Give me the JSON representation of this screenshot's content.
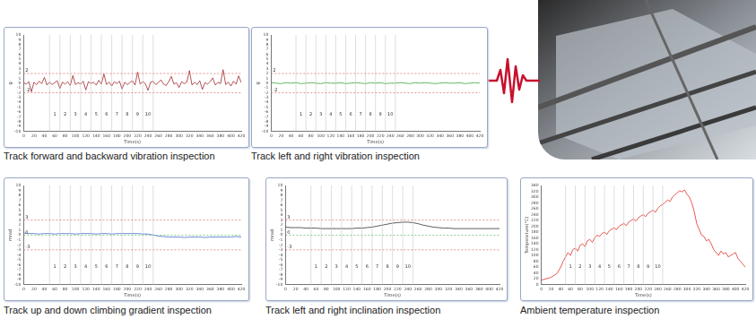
{
  "chart_data": [
    {
      "type": "line",
      "title": "Track forward and backward vibration inspection",
      "x_label": "Time(s)",
      "y_label": "g",
      "color": "#a0282a",
      "grid": false,
      "x": [
        0,
        5,
        10,
        15,
        20,
        25,
        30,
        35,
        40,
        45,
        50,
        55,
        60,
        65,
        70,
        75,
        80,
        85,
        90,
        95,
        100,
        105,
        110,
        115,
        120,
        125,
        130,
        135,
        140,
        145,
        150,
        155,
        160,
        165,
        170,
        175,
        180,
        185,
        190,
        195,
        200,
        205,
        210,
        215,
        220,
        225,
        230,
        235,
        240,
        245,
        250,
        255,
        260,
        265,
        270,
        275,
        280,
        285,
        290,
        295,
        300,
        305,
        310,
        315,
        320,
        325,
        330,
        335,
        340,
        345,
        350,
        355,
        360,
        365,
        370,
        375,
        380,
        385,
        390,
        395,
        400,
        405,
        410,
        415,
        420
      ],
      "values": [
        0.1,
        -0.2,
        0.3,
        -1.8,
        0.2,
        -0.3,
        0.4,
        -0.1,
        1.2,
        -0.4,
        0.2,
        -0.3,
        0.1,
        0.5,
        -1.1,
        0.2,
        -0.2,
        0.3,
        -0.5,
        1.6,
        -0.3,
        0.1,
        -0.2,
        0.4,
        -1.4,
        0.3,
        -0.1,
        0.2,
        -0.4,
        0.6,
        -0.2,
        1.9,
        -0.3,
        0.2,
        -0.6,
        0.3,
        -0.1,
        0.4,
        -1.2,
        0.2,
        -0.3,
        0.1,
        0.5,
        -0.4,
        2.3,
        -0.2,
        0.3,
        -0.1,
        -1.5,
        0.2,
        0.4,
        -0.3,
        0.1,
        0.7,
        -0.2,
        -0.5,
        0.3,
        1.4,
        -0.2,
        0.1,
        -0.9,
        0.3,
        -0.1,
        0.2,
        2.6,
        -0.4,
        0.2,
        -0.3,
        0.5,
        -1.3,
        0.1,
        -0.2,
        0.3,
        1.1,
        -0.4,
        0.2,
        -0.1,
        2.8,
        -0.3,
        0.2,
        -0.6,
        0.4,
        -0.2,
        1.5,
        0.1
      ],
      "xlim": [
        0,
        420
      ],
      "xticks": [
        0,
        20,
        40,
        60,
        80,
        100,
        120,
        140,
        160,
        180,
        200,
        220,
        240,
        260,
        280,
        300,
        320,
        340,
        360,
        380,
        400,
        420
      ],
      "ylim": [
        -10,
        10
      ],
      "yticks": [
        -10,
        -9,
        -8,
        -7,
        -6,
        -5,
        -4,
        -3,
        -2,
        -1,
        0,
        1,
        2,
        3,
        4,
        5,
        6,
        7,
        8,
        9,
        10
      ],
      "reference_lines": [
        {
          "y": 2,
          "color": "#e06666"
        },
        {
          "y": -2,
          "color": "#e06666"
        }
      ],
      "segments": [
        {
          "label": "1",
          "from": 50,
          "to": 70
        },
        {
          "label": "2",
          "from": 70,
          "to": 90
        },
        {
          "label": "3",
          "from": 90,
          "to": 110
        },
        {
          "label": "4",
          "from": 110,
          "to": 130
        },
        {
          "label": "5",
          "from": 130,
          "to": 150
        },
        {
          "label": "6",
          "from": 150,
          "to": 170
        },
        {
          "label": "7",
          "from": 170,
          "to": 190
        },
        {
          "label": "8",
          "from": 190,
          "to": 210
        },
        {
          "label": "9",
          "from": 210,
          "to": 230
        },
        {
          "label": "10",
          "from": 230,
          "to": 250
        }
      ]
    },
    {
      "type": "line",
      "title": "Track left and right vibration inspection",
      "x_label": "Time(s)",
      "y_label": "g",
      "color": "#3aa53a",
      "grid": false,
      "x": [
        0,
        10,
        20,
        30,
        40,
        50,
        60,
        70,
        80,
        90,
        100,
        110,
        120,
        130,
        140,
        150,
        160,
        170,
        180,
        190,
        200,
        210,
        220,
        230,
        240,
        250,
        260,
        270,
        280,
        290,
        300,
        310,
        320,
        330,
        340,
        350,
        360,
        370,
        380,
        390,
        400,
        410,
        420
      ],
      "values": [
        0.1,
        0,
        -0.1,
        0.1,
        0,
        0.1,
        -0.1,
        0,
        0.1,
        0,
        -0.1,
        0.1,
        0,
        0,
        0.1,
        -0.1,
        0,
        0.1,
        0,
        -0.1,
        0.1,
        0,
        0.1,
        -0.1,
        0,
        0,
        0.1,
        0,
        -0.1,
        0.1,
        0,
        0.1,
        0,
        -0.1,
        0,
        0.1,
        0,
        0,
        0.1,
        -0.1,
        0,
        0.1,
        0
      ],
      "xlim": [
        0,
        420
      ],
      "xticks": [
        0,
        20,
        40,
        60,
        80,
        100,
        120,
        140,
        160,
        180,
        200,
        220,
        240,
        260,
        280,
        300,
        320,
        340,
        360,
        380,
        400,
        420
      ],
      "ylim": [
        -10,
        10
      ],
      "yticks": [
        -10,
        -9,
        -8,
        -7,
        -6,
        -5,
        -4,
        -3,
        -2,
        -1,
        0,
        1,
        2,
        3,
        4,
        5,
        6,
        7,
        8,
        9,
        10
      ],
      "reference_lines": [
        {
          "y": 2,
          "color": "#e06666"
        },
        {
          "y": -2,
          "color": "#e06666"
        }
      ],
      "segments": [
        {
          "label": "1",
          "from": 50,
          "to": 70
        },
        {
          "label": "2",
          "from": 70,
          "to": 90
        },
        {
          "label": "3",
          "from": 90,
          "to": 110
        },
        {
          "label": "4",
          "from": 110,
          "to": 130
        },
        {
          "label": "5",
          "from": 130,
          "to": 150
        },
        {
          "label": "6",
          "from": 150,
          "to": 170
        },
        {
          "label": "7",
          "from": 170,
          "to": 190
        },
        {
          "label": "8",
          "from": 190,
          "to": 210
        },
        {
          "label": "9",
          "from": 210,
          "to": 230
        },
        {
          "label": "10",
          "from": 230,
          "to": 250
        }
      ]
    },
    {
      "type": "line",
      "title": "Track up and down climbing gradient inspection",
      "x_label": "Time(s)",
      "y_label": "mrad",
      "color": "#4a6fd0",
      "grid": false,
      "x": [
        0,
        10,
        20,
        30,
        40,
        50,
        60,
        70,
        80,
        90,
        100,
        110,
        120,
        130,
        140,
        150,
        160,
        170,
        180,
        190,
        200,
        210,
        220,
        230,
        240,
        250,
        260,
        270,
        280,
        290,
        300,
        310,
        320,
        330,
        340,
        350,
        360,
        370,
        380,
        390,
        400,
        410,
        420
      ],
      "values": [
        0.4,
        0.3,
        0.3,
        0.2,
        0.3,
        0.3,
        0.2,
        0.3,
        0.3,
        0.3,
        0.2,
        0.3,
        0.3,
        0.3,
        0.2,
        0.3,
        0.3,
        0.2,
        0.3,
        0.3,
        0.3,
        0.3,
        0.3,
        0.2,
        0.2,
        0.0,
        -0.2,
        -0.3,
        -0.4,
        -0.4,
        -0.4,
        -0.5,
        -0.4,
        -0.4,
        -0.4,
        -0.5,
        -0.4,
        -0.4,
        -0.4,
        -0.4,
        -0.4,
        -0.3,
        -0.4
      ],
      "xlim": [
        0,
        420
      ],
      "xticks": [
        0,
        20,
        40,
        60,
        80,
        100,
        120,
        140,
        160,
        180,
        200,
        220,
        240,
        260,
        280,
        300,
        320,
        340,
        360,
        380,
        400,
        420
      ],
      "ylim": [
        -10,
        10
      ],
      "yticks": [
        -10,
        -9,
        -8,
        -7,
        -6,
        -5,
        -4,
        -3,
        -2,
        -1,
        0,
        1,
        2,
        3,
        4,
        5,
        6,
        7,
        8,
        9,
        10
      ],
      "reference_lines": [
        {
          "y": 3,
          "color": "#e06666"
        },
        {
          "y": 0,
          "color": "#5cb85c"
        },
        {
          "y": -3,
          "color": "#e06666"
        }
      ],
      "segments": [
        {
          "label": "1",
          "from": 50,
          "to": 70
        },
        {
          "label": "2",
          "from": 70,
          "to": 90
        },
        {
          "label": "3",
          "from": 90,
          "to": 110
        },
        {
          "label": "4",
          "from": 110,
          "to": 130
        },
        {
          "label": "5",
          "from": 130,
          "to": 150
        },
        {
          "label": "6",
          "from": 150,
          "to": 170
        },
        {
          "label": "7",
          "from": 170,
          "to": 190
        },
        {
          "label": "8",
          "from": 190,
          "to": 210
        },
        {
          "label": "9",
          "from": 210,
          "to": 230
        },
        {
          "label": "10",
          "from": 230,
          "to": 250
        }
      ]
    },
    {
      "type": "line",
      "title": "Track left and right inclination inspection",
      "x_label": "Time(s)",
      "y_label": "mrad",
      "color": "#333333",
      "grid": false,
      "x": [
        0,
        10,
        20,
        30,
        40,
        50,
        60,
        70,
        80,
        90,
        100,
        110,
        120,
        130,
        140,
        150,
        160,
        170,
        180,
        190,
        200,
        210,
        220,
        230,
        240,
        250,
        260,
        270,
        280,
        290,
        300,
        310,
        320,
        330,
        340,
        350,
        360,
        370,
        380,
        390,
        400,
        410,
        420
      ],
      "values": [
        1.6,
        1.5,
        1.5,
        1.5,
        1.4,
        1.4,
        1.4,
        1.3,
        1.3,
        1.3,
        1.3,
        1.3,
        1.3,
        1.3,
        1.4,
        1.4,
        1.5,
        1.6,
        1.8,
        2.0,
        2.2,
        2.4,
        2.5,
        2.6,
        2.6,
        2.5,
        2.3,
        2.0,
        1.8,
        1.6,
        1.5,
        1.4,
        1.4,
        1.3,
        1.3,
        1.3,
        1.3,
        1.3,
        1.3,
        1.3,
        1.3,
        1.3,
        1.3
      ],
      "xlim": [
        0,
        420
      ],
      "xticks": [
        0,
        20,
        40,
        60,
        80,
        100,
        120,
        140,
        160,
        180,
        200,
        220,
        240,
        260,
        280,
        300,
        320,
        340,
        360,
        380,
        400,
        420
      ],
      "ylim": [
        -10,
        10
      ],
      "yticks": [
        -10,
        -9,
        -8,
        -7,
        -6,
        -5,
        -4,
        -3,
        -2,
        -1,
        0,
        1,
        2,
        3,
        4,
        5,
        6,
        7,
        8,
        9,
        10
      ],
      "reference_lines": [
        {
          "y": 3,
          "color": "#e06666"
        },
        {
          "y": 0,
          "color": "#5cb85c"
        },
        {
          "y": -3,
          "color": "#e06666"
        }
      ],
      "segments": [
        {
          "label": "1",
          "from": 50,
          "to": 70
        },
        {
          "label": "2",
          "from": 70,
          "to": 90
        },
        {
          "label": "3",
          "from": 90,
          "to": 110
        },
        {
          "label": "4",
          "from": 110,
          "to": 130
        },
        {
          "label": "5",
          "from": 130,
          "to": 150
        },
        {
          "label": "6",
          "from": 150,
          "to": 170
        },
        {
          "label": "7",
          "from": 170,
          "to": 190
        },
        {
          "label": "8",
          "from": 190,
          "to": 210
        },
        {
          "label": "9",
          "from": 210,
          "to": 230
        },
        {
          "label": "10",
          "from": 230,
          "to": 250
        }
      ]
    },
    {
      "type": "line",
      "title": "Ambient temperature inspection",
      "x_label": "Time(s)",
      "y_label": "Temperature(°C)",
      "color": "#e0302a",
      "grid": false,
      "x": [
        0,
        5,
        10,
        15,
        20,
        25,
        30,
        35,
        40,
        45,
        50,
        55,
        60,
        65,
        70,
        75,
        80,
        85,
        90,
        95,
        100,
        105,
        110,
        115,
        120,
        125,
        130,
        135,
        140,
        145,
        150,
        155,
        160,
        165,
        170,
        175,
        180,
        185,
        190,
        195,
        200,
        205,
        210,
        215,
        220,
        225,
        230,
        235,
        240,
        245,
        250,
        255,
        260,
        265,
        270,
        275,
        280,
        285,
        290,
        295,
        300,
        305,
        310,
        315,
        320,
        325,
        330,
        335,
        340,
        345,
        350,
        355,
        360,
        365,
        370,
        375,
        380,
        385,
        390,
        395,
        400,
        405,
        410,
        415,
        420
      ],
      "values": [
        15,
        18,
        20,
        22,
        25,
        30,
        35,
        45,
        60,
        80,
        95,
        110,
        100,
        120,
        125,
        115,
        135,
        140,
        130,
        150,
        155,
        145,
        160,
        170,
        165,
        175,
        180,
        172,
        185,
        190,
        195,
        188,
        200,
        205,
        210,
        202,
        215,
        220,
        225,
        218,
        230,
        235,
        240,
        233,
        245,
        250,
        255,
        248,
        262,
        270,
        275,
        282,
        290,
        285,
        300,
        308,
        315,
        322,
        318,
        325,
        310,
        300,
        280,
        250,
        210,
        190,
        170,
        165,
        150,
        155,
        140,
        120,
        110,
        100,
        115,
        105,
        110,
        95,
        100,
        105,
        110,
        90,
        80,
        70,
        60
      ],
      "xlim": [
        0,
        420
      ],
      "xticks": [
        0,
        20,
        40,
        60,
        80,
        100,
        120,
        140,
        160,
        180,
        200,
        220,
        240,
        260,
        280,
        300,
        320,
        340,
        360,
        380,
        400,
        420
      ],
      "ylim": [
        0,
        340
      ],
      "yticks": [
        0,
        20,
        40,
        60,
        80,
        100,
        120,
        140,
        160,
        180,
        200,
        220,
        240,
        260,
        280,
        300,
        320,
        340
      ],
      "reference_lines": [],
      "segments": [
        {
          "label": "1",
          "from": 50,
          "to": 70
        },
        {
          "label": "2",
          "from": 70,
          "to": 90
        },
        {
          "label": "3",
          "from": 90,
          "to": 110
        },
        {
          "label": "4",
          "from": 110,
          "to": 130
        },
        {
          "label": "5",
          "from": 130,
          "to": 150
        },
        {
          "label": "6",
          "from": 150,
          "to": 170
        },
        {
          "label": "7",
          "from": 170,
          "to": 190
        },
        {
          "label": "8",
          "from": 190,
          "to": 210
        },
        {
          "label": "9",
          "from": 210,
          "to": 230
        },
        {
          "label": "10",
          "from": 230,
          "to": 250
        }
      ]
    }
  ]
}
